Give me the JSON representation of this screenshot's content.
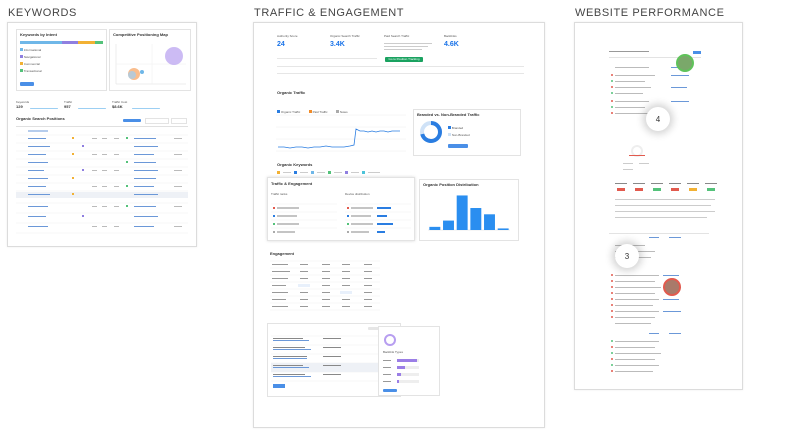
{
  "columns": {
    "keywords_title": "KEYWORDS",
    "traffic_title": "TRAFFIC & ENGAGEMENT",
    "performance_title": "WEBSITE PERFORMANCE"
  },
  "keywords": {
    "pie_title": "Keywords by Intent",
    "map_title": "Competitive Positioning Map",
    "intents": [
      "Informational",
      "Navigational",
      "Commercial",
      "Transactional"
    ],
    "intent_colors": [
      "#6fb7e8",
      "#8f7fe0",
      "#f2b134",
      "#54c27a"
    ],
    "stats": [
      {
        "label": "Keywords",
        "value": "129"
      },
      {
        "label": "Traffic",
        "value": "957"
      },
      {
        "label": "Traffic Cost",
        "value": "$8.6K"
      }
    ],
    "table_title": "Organic Search Positions",
    "view_button": "View details"
  },
  "traffic": {
    "kpis": [
      {
        "label": "Authority Score",
        "value": "24"
      },
      {
        "label": "Organic Search Traffic",
        "value": "3.4K"
      },
      {
        "label": "Paid Search Traffic",
        "value": ""
      },
      {
        "label": "Backlinks",
        "value": "4.6K"
      }
    ],
    "upgrade_button": "Go to Position Tracking",
    "organic_traffic_label": "Organic Traffic",
    "legend": [
      "Organic Traffic",
      "Paid Traffic",
      "Notes"
    ],
    "donut_title": "Branded vs. Non-Branded Traffic",
    "donut_legend": [
      "Branded",
      "Non-Branded"
    ],
    "organic_keywords_label": "Organic Keywords",
    "section_title": "Traffic & Engagement",
    "traffic_ranks": "Traffic ranks",
    "device_distribution": "Device distribution",
    "position_distribution": "Organic Position Distribution",
    "engagement_label": "Engagement",
    "keyword_gap": "Backlink Types",
    "chart_data": {
      "type": "bar",
      "categories": [
        "1",
        "2-3",
        "4-10",
        "11-20",
        "21-50",
        "51-100"
      ],
      "values": [
        2,
        6,
        22,
        14,
        10,
        1
      ],
      "title": "Organic Position Distribution"
    }
  },
  "performance": {
    "markers": [
      "4",
      "3"
    ]
  }
}
